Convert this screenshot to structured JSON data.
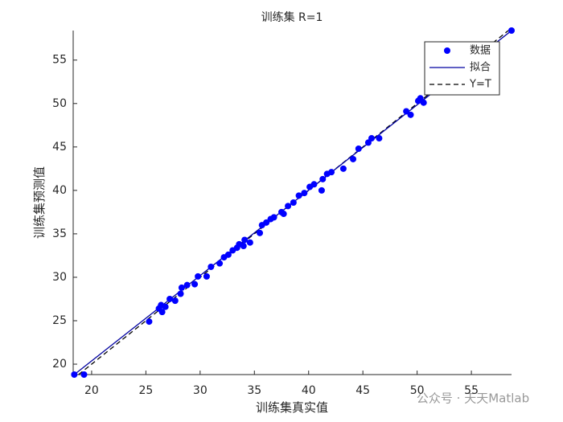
{
  "chart_data": {
    "type": "scatter",
    "title": "训练集 R=1",
    "xlabel": "训练集真实值",
    "ylabel": "训练集预测值",
    "xlim": [
      18.3,
      58.7
    ],
    "ylim": [
      18.8,
      58.4
    ],
    "xticks": [
      20,
      25,
      30,
      35,
      40,
      45,
      50,
      55
    ],
    "yticks": [
      20,
      25,
      30,
      35,
      40,
      45,
      50,
      55
    ],
    "legend": "top-right",
    "watermark": "公众号 · 天天Matlab",
    "series": [
      {
        "name": "数据",
        "color": "#0000ff",
        "style": "marker",
        "x": [
          18.4,
          19.3,
          25.3,
          26.2,
          26.4,
          26.5,
          26.8,
          27.2,
          27.7,
          28.2,
          28.3,
          28.8,
          29.5,
          29.8,
          30.6,
          31.0,
          31.8,
          32.2,
          32.6,
          33.0,
          33.4,
          33.6,
          34.0,
          34.1,
          34.6,
          35.5,
          35.7,
          36.1,
          36.5,
          36.8,
          37.5,
          37.7,
          38.1,
          38.6,
          39.1,
          39.6,
          40.1,
          40.5,
          41.2,
          41.3,
          41.7,
          42.1,
          43.2,
          44.1,
          44.6,
          45.5,
          45.8,
          46.5,
          49.0,
          49.4,
          50.1,
          50.3,
          50.6,
          58.7
        ],
        "values": [
          18.8,
          18.8,
          24.9,
          26.4,
          26.8,
          26.0,
          26.6,
          27.5,
          27.3,
          28.1,
          28.8,
          29.1,
          29.2,
          30.1,
          30.1,
          31.2,
          31.6,
          32.3,
          32.6,
          33.1,
          33.4,
          33.8,
          33.6,
          34.3,
          34.0,
          35.1,
          36.0,
          36.3,
          36.7,
          36.9,
          37.5,
          37.3,
          38.2,
          38.6,
          39.4,
          39.7,
          40.4,
          40.7,
          40.0,
          41.3,
          41.9,
          42.1,
          42.5,
          43.6,
          44.8,
          45.5,
          46.0,
          46.0,
          49.1,
          48.7,
          50.3,
          50.6,
          50.1,
          58.4
        ]
      },
      {
        "name": "拟合",
        "color": "#0000a0",
        "style": "solid",
        "x": [
          18.4,
          58.7
        ],
        "values": [
          18.8,
          58.4
        ]
      },
      {
        "name": "Y=T",
        "color": "#000000",
        "style": "dashed",
        "x": [
          18.8,
          58.4
        ],
        "values": [
          18.8,
          58.4
        ]
      }
    ]
  }
}
